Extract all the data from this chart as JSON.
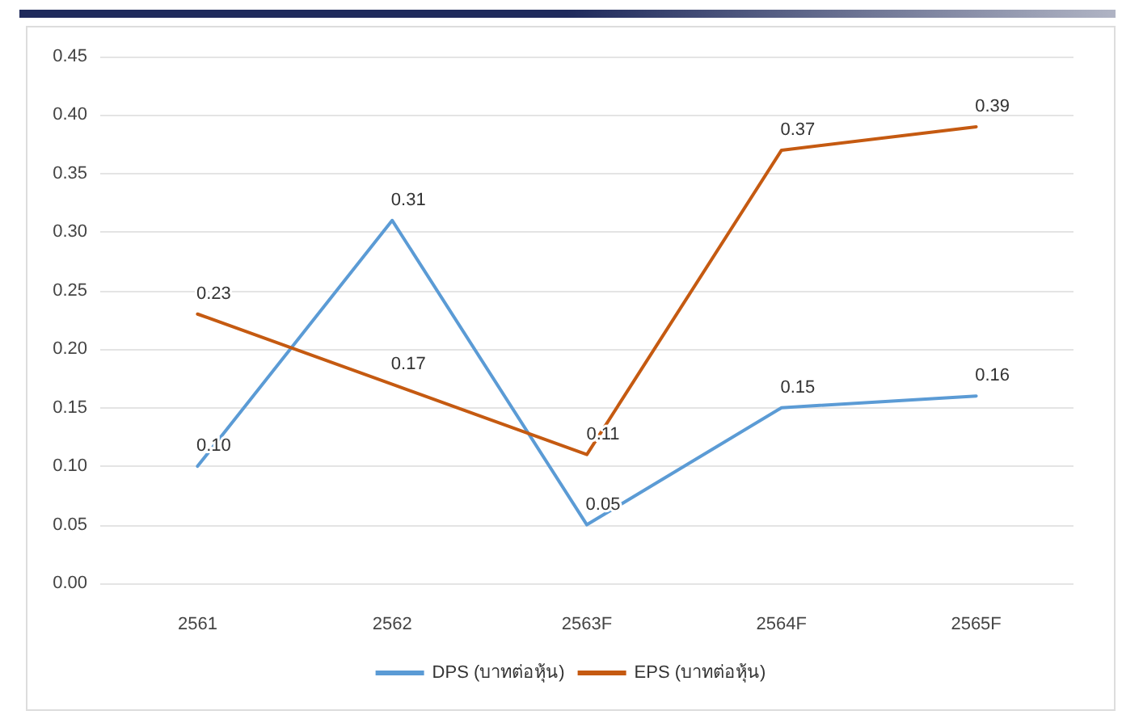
{
  "chart_data": {
    "type": "line",
    "categories": [
      "2561",
      "2562",
      "2563F",
      "2564F",
      "2565F"
    ],
    "series": [
      {
        "name": "DPS (บาทต่อหุ้น)",
        "color": "#5b9bd5",
        "values": [
          0.1,
          0.31,
          0.05,
          0.15,
          0.16
        ],
        "value_labels": [
          "0.10",
          "0.31",
          "0.05",
          "0.15",
          "0.16"
        ]
      },
      {
        "name": "EPS (บาทต่อหุ้น)",
        "color": "#c55a11",
        "values": [
          0.23,
          0.17,
          0.11,
          0.37,
          0.39
        ],
        "value_labels": [
          "0.23",
          "0.17",
          "0.11",
          "0.37",
          "0.39"
        ]
      }
    ],
    "ylim": [
      0,
      0.45
    ],
    "yticks": [
      {
        "value": 0,
        "label": "0.00"
      },
      {
        "value": 0.05,
        "label": "0.05"
      },
      {
        "value": 0.1,
        "label": "0.10"
      },
      {
        "value": 0.15,
        "label": "0.15"
      },
      {
        "value": 0.2,
        "label": "0.20"
      },
      {
        "value": 0.25,
        "label": "0.25"
      },
      {
        "value": 0.3,
        "label": "0.30"
      },
      {
        "value": 0.35,
        "label": "0.35"
      },
      {
        "value": 0.4,
        "label": "0.40"
      },
      {
        "value": 0.45,
        "label": "0.45"
      }
    ],
    "grid": "y",
    "legend": "bottom",
    "marker": "none",
    "line_style": "solid"
  }
}
